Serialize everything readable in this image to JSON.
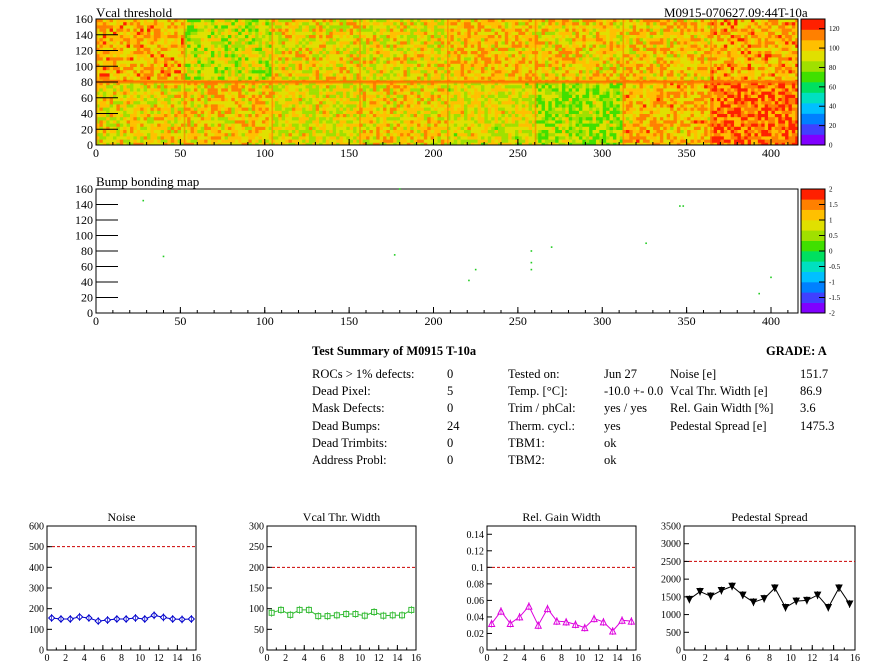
{
  "header": {
    "map1_title": "Vcal threshold",
    "map2_title": "Bump bonding map",
    "module_id": "M0915-070627.09:44T-10a"
  },
  "colors": {
    "palette": [
      "#8000ff",
      "#4040ff",
      "#0080ff",
      "#00c0ff",
      "#00e0c0",
      "#00e060",
      "#40e000",
      "#a0e000",
      "#e0e000",
      "#ffc000",
      "#ff8000",
      "#ff2000"
    ],
    "threshold_line": "#cc0000",
    "noise_series": "#0000cc",
    "vcal_series": "#33bb33",
    "gain_series": "#dd00dd",
    "pedestal_series": "#000000"
  },
  "chart_data": [
    {
      "type": "heatmap",
      "title": "Vcal threshold",
      "xlim": [
        0,
        416
      ],
      "ylim": [
        0,
        160
      ],
      "x_ticks": [
        0,
        50,
        100,
        150,
        200,
        250,
        300,
        350,
        400
      ],
      "y_ticks": [
        0,
        20,
        40,
        60,
        80,
        100,
        120,
        140,
        160
      ],
      "z_ticks": [
        0,
        20,
        40,
        60,
        80,
        100,
        120
      ],
      "zlim": [
        0,
        130
      ],
      "roc_mean_top": [
        104,
        88,
        96,
        94,
        102,
        99,
        100,
        105
      ],
      "roc_mean_bottom": [
        96,
        100,
        93,
        98,
        92,
        82,
        103,
        115
      ]
    },
    {
      "type": "scatter",
      "title": "Bump bonding map",
      "xlim": [
        0,
        416
      ],
      "ylim": [
        0,
        160
      ],
      "x_ticks": [
        0,
        50,
        100,
        150,
        200,
        250,
        300,
        350,
        400
      ],
      "y_ticks": [
        0,
        20,
        40,
        60,
        80,
        100,
        120,
        140,
        160
      ],
      "z_ticks": [
        "2",
        "1.5",
        "1",
        "0.5",
        "0",
        "-0.5",
        "-1",
        "-1.5",
        "-2"
      ],
      "points": [
        [
          28,
          145
        ],
        [
          40,
          73
        ],
        [
          177,
          75
        ],
        [
          180,
          160
        ],
        [
          221,
          42
        ],
        [
          225,
          56
        ],
        [
          258,
          80
        ],
        [
          258,
          65
        ],
        [
          258,
          56
        ],
        [
          270,
          85
        ],
        [
          326,
          90
        ],
        [
          346,
          138
        ],
        [
          348,
          138
        ],
        [
          393,
          25
        ],
        [
          400,
          46
        ]
      ]
    },
    {
      "type": "line",
      "title": "Noise",
      "xlim": [
        0,
        16
      ],
      "ylim": [
        0,
        600
      ],
      "x_ticks": [
        0,
        2,
        4,
        6,
        8,
        10,
        12,
        14,
        16
      ],
      "y_ticks": [
        0,
        100,
        200,
        300,
        400,
        500,
        600
      ],
      "threshold": 500,
      "x": [
        0,
        1,
        2,
        3,
        4,
        5,
        6,
        7,
        8,
        9,
        10,
        11,
        12,
        13,
        14,
        15
      ],
      "values": [
        155,
        150,
        150,
        160,
        155,
        140,
        145,
        150,
        150,
        155,
        150,
        168,
        158,
        150,
        148,
        150
      ]
    },
    {
      "type": "line",
      "title": "Vcal Thr. Width",
      "xlim": [
        0,
        16
      ],
      "ylim": [
        0,
        300
      ],
      "x_ticks": [
        0,
        2,
        4,
        6,
        8,
        10,
        12,
        14,
        16
      ],
      "y_ticks": [
        0,
        50,
        100,
        150,
        200,
        250,
        300
      ],
      "threshold": 200,
      "x": [
        0,
        1,
        2,
        3,
        4,
        5,
        6,
        7,
        8,
        9,
        10,
        11,
        12,
        13,
        14,
        15
      ],
      "values": [
        90,
        97,
        85,
        97,
        97,
        82,
        82,
        84,
        87,
        87,
        83,
        92,
        83,
        84,
        84,
        97
      ]
    },
    {
      "type": "line",
      "title": "Rel. Gain Width",
      "xlim": [
        0,
        16
      ],
      "ylim": [
        0,
        0.15
      ],
      "x_ticks": [
        0,
        2,
        4,
        6,
        8,
        10,
        12,
        14,
        16
      ],
      "y_ticks": [
        "0",
        "0.02",
        "0.04",
        "0.06",
        "0.08",
        "0.1",
        "0.12",
        "0.14"
      ],
      "threshold": 0.1,
      "x": [
        0,
        1,
        2,
        3,
        4,
        5,
        6,
        7,
        8,
        9,
        10,
        11,
        12,
        13,
        14,
        15
      ],
      "values": [
        0.032,
        0.047,
        0.032,
        0.04,
        0.053,
        0.03,
        0.05,
        0.035,
        0.034,
        0.031,
        0.027,
        0.038,
        0.034,
        0.023,
        0.036,
        0.035
      ]
    },
    {
      "type": "line",
      "title": "Pedestal Spread",
      "xlim": [
        0,
        16
      ],
      "ylim": [
        0,
        3500
      ],
      "x_ticks": [
        0,
        2,
        4,
        6,
        8,
        10,
        12,
        14,
        16
      ],
      "y_ticks": [
        0,
        500,
        1000,
        1500,
        2000,
        2500,
        3000,
        3500
      ],
      "threshold": 2500,
      "x": [
        0,
        1,
        2,
        3,
        4,
        5,
        6,
        7,
        8,
        9,
        10,
        11,
        12,
        13,
        14,
        15
      ],
      "values": [
        1430,
        1650,
        1520,
        1680,
        1800,
        1550,
        1350,
        1450,
        1750,
        1200,
        1380,
        1400,
        1550,
        1200,
        1750,
        1300
      ]
    }
  ],
  "summary": {
    "title": "Test Summary of M0915     T-10a",
    "grade": "GRADE:  A",
    "col1_labels": [
      "ROCs > 1% defects:",
      "Dead Pixel:",
      "Mask Defects:",
      "Dead Bumps:",
      "Dead Trimbits:",
      "Address Probl:"
    ],
    "col1_values": [
      "0",
      "5",
      "0",
      "24",
      "0",
      "0"
    ],
    "col2_labels": [
      "Tested on:",
      "Temp. [°C]:",
      "Trim / phCal:",
      "Therm. cycl.:",
      "TBM1:",
      "TBM2:"
    ],
    "col2_values": [
      "Jun 27",
      "-10.0 +- 0.0",
      "yes / yes",
      "yes",
      "ok",
      "ok"
    ],
    "col3_labels": [
      "Noise [e]",
      "Vcal Thr. Width [e]",
      "Rel. Gain Width [%]",
      "Pedestal Spread [e]"
    ],
    "col3_values": [
      "151.7",
      "86.9",
      "3.6",
      "1475.3"
    ]
  }
}
